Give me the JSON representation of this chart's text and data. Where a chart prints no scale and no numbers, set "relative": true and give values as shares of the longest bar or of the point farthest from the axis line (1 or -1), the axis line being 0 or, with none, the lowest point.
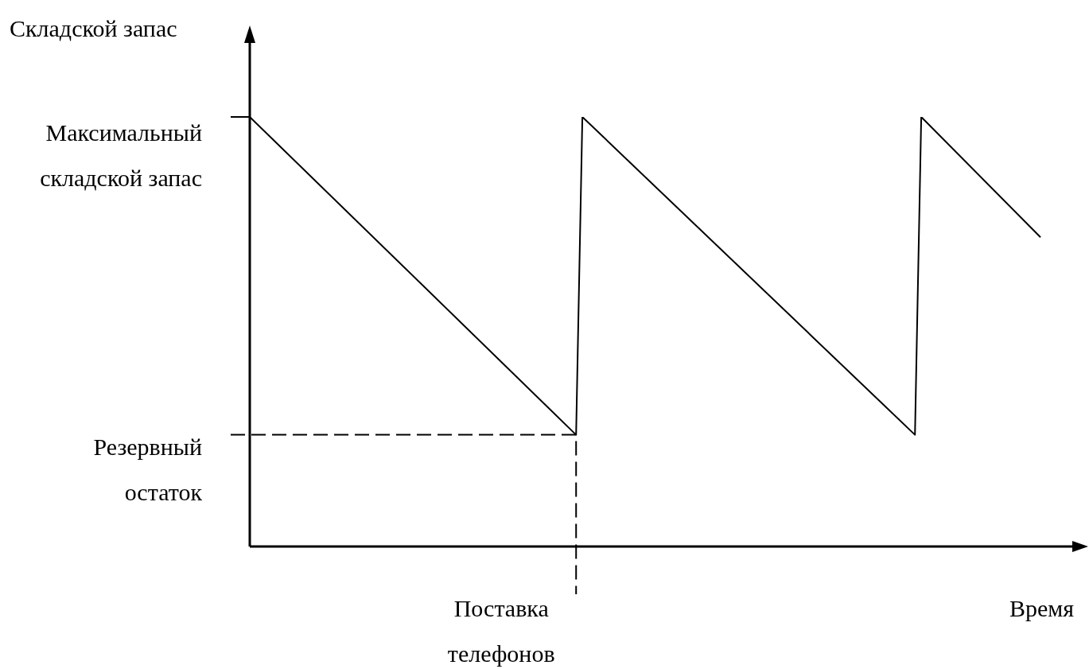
{
  "chart_data": {
    "type": "line",
    "xlabel": "Время",
    "ylabel": "Складской запас",
    "categories": [
      null,
      null,
      null,
      null,
      null,
      null,
      null,
      null,
      null,
      null,
      null,
      null,
      null,
      null,
      null,
      null,
      null,
      null,
      null,
      null,
      null,
      null,
      null,
      null,
      null,
      null,
      null,
      null,
      null,
      null,
      null,
      null,
      null,
      null,
      null,
      null,
      null,
      null,
      null,
      null,
      null,
      null,
      null,
      null,
      null,
      null,
      null,
      null,
      null,
      null,
      null,
      null,
      null,
      null,
      null,
      null,
      null,
      null,
      null,
      null,
      null,
      null,
      null,
      null,
      null,
      null,
      null,
      null,
      null,
      null,
      null,
      null,
      null,
      null,
      null,
      null,
      null,
      null,
      null,
      null,
      null,
      null,
      null,
      null,
      null,
      null,
      null,
      null,
      null,
      null,
      null,
      null,
      null,
      null,
      null,
      null,
      null,
      null,
      null,
      null,
      null,
      null,
      null,
      null,
      null,
      null,
      null,
      null,
      null,
      null,
      null,
      null,
      null,
      null,
      null,
      null,
      null,
      null,
      null,
      null,
      null,
      null,
      null,
      null,
      null,
      null,
      null
    ],
    "relative": true,
    "marker": "none",
    "line_style": "solid",
    "series": [
      {
        "color": "#000000",
        "values": [
          1,
          null,
          null,
          null,
          null,
          null,
          null,
          null,
          null,
          null,
          null,
          null,
          null,
          null,
          null,
          null,
          null,
          null,
          null,
          null,
          null,
          null,
          null,
          null,
          null,
          null,
          null,
          null,
          null,
          null,
          null,
          null,
          null,
          null,
          null,
          null,
          null,
          null,
          null,
          null,
          null,
          null,
          null,
          null,
          null,
          null,
          null,
          null,
          null,
          null,
          null,
          null,
          0.26,
          1,
          null,
          null,
          null,
          null,
          null,
          null,
          null,
          null,
          null,
          null,
          null,
          null,
          null,
          null,
          null,
          null,
          null,
          null,
          null,
          null,
          null,
          null,
          null,
          null,
          null,
          null,
          null,
          null,
          null,
          null,
          null,
          null,
          null,
          null,
          null,
          null,
          null,
          null,
          null,
          null,
          null,
          null,
          null,
          null,
          null,
          null,
          null,
          null,
          null,
          null,
          null,
          null,
          0.26,
          1,
          null,
          null,
          null,
          null,
          null,
          null,
          null,
          null,
          null,
          null,
          null,
          null,
          null,
          null,
          null,
          null,
          null,
          null,
          0.72
        ]
      }
    ],
    "ref_lines": [
      {
        "axis": "y",
        "value": 0.26,
        "label": "Резервный остаток",
        "line_style": "dashed",
        "color": "#000000"
      }
    ],
    "annotations": [
      "Максимальный складской запас",
      "Поставка телефонов"
    ]
  }
}
